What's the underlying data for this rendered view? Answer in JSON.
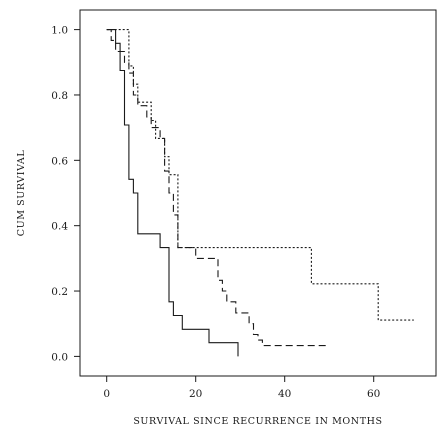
{
  "chart_data": {
    "type": "line",
    "chart_subtype": "step",
    "title": "",
    "xlabel": "SURVIVAL SINCE RECURRENCE IN MONTHS",
    "ylabel": "CUM SURVIVAL",
    "xlim": [
      -6,
      74
    ],
    "ylim": [
      -0.06,
      1.06
    ],
    "xticks": [
      0,
      20,
      40,
      60
    ],
    "xtick_labels": [
      "0",
      "20",
      "40",
      "60"
    ],
    "yticks": [
      0.0,
      0.2,
      0.4,
      0.6,
      0.8,
      1.0
    ],
    "ytick_labels": [
      "0.0",
      "0.2",
      "0.4",
      "0.6",
      "0.8",
      "1.0"
    ],
    "grid": false,
    "legend": "none",
    "series": [
      {
        "line_style": "solid",
        "color": "#1a1a1a",
        "x": [
          0,
          2,
          3,
          4,
          5,
          6,
          7,
          12,
          14,
          15,
          17,
          23,
          29.5
        ],
        "y": [
          1.0,
          0.958,
          0.875,
          0.708,
          0.542,
          0.5,
          0.375,
          0.333,
          0.167,
          0.125,
          0.083,
          0.042,
          0.042
        ]
      },
      {
        "line_style": "dashed",
        "color": "#1a1a1a",
        "x": [
          0,
          1,
          2,
          4,
          5,
          6,
          7,
          9,
          10,
          12,
          13,
          14,
          15,
          16,
          20,
          25,
          26,
          27,
          29,
          32,
          33,
          34,
          35,
          36,
          50
        ],
        "y": [
          1.0,
          0.967,
          0.933,
          0.9,
          0.867,
          0.8,
          0.767,
          0.733,
          0.7,
          0.667,
          0.567,
          0.5,
          0.433,
          0.333,
          0.3,
          0.233,
          0.2,
          0.167,
          0.133,
          0.1,
          0.067,
          0.05,
          0.033,
          0.033,
          0.033
        ]
      },
      {
        "line_style": "dotted",
        "color": "#1a1a1a",
        "x": [
          0,
          5,
          6,
          7,
          8,
          10,
          11,
          13,
          14,
          16,
          46,
          61,
          69
        ],
        "y": [
          1.0,
          0.889,
          0.833,
          0.778,
          0.778,
          0.722,
          0.667,
          0.611,
          0.556,
          0.333,
          0.222,
          0.111,
          0.111
        ]
      }
    ]
  }
}
